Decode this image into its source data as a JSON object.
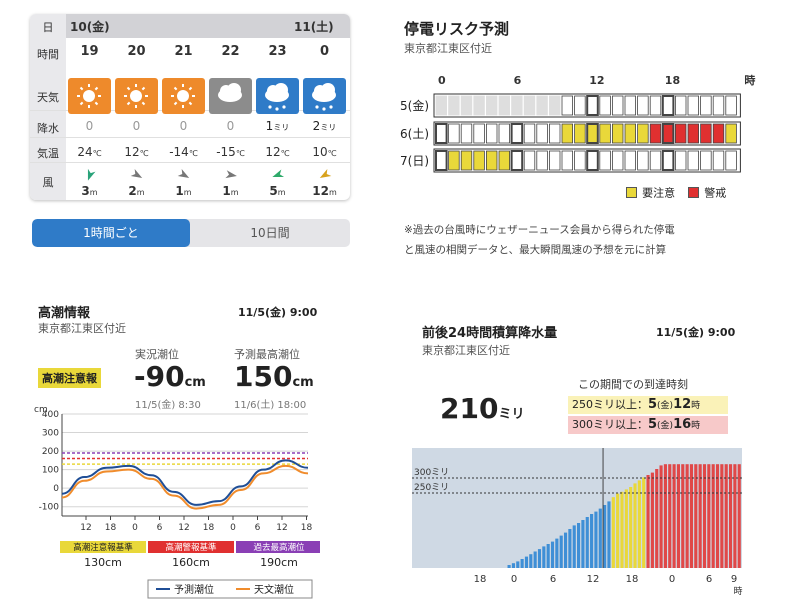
{
  "weather": {
    "row_labels": [
      "日",
      "時間",
      "天気",
      "降水",
      "気温",
      "風"
    ],
    "days": [
      "10(金)",
      "11(土)"
    ],
    "hours": [
      {
        "hour": "19",
        "icon": "sun-icon",
        "precip": "0",
        "temp": "24",
        "wind": "3"
      },
      {
        "hour": "20",
        "icon": "sun-icon",
        "precip": "0",
        "temp": "12",
        "wind": "2"
      },
      {
        "hour": "21",
        "icon": "sun-icon",
        "precip": "0",
        "temp": "-14",
        "wind": "1"
      },
      {
        "hour": "22",
        "icon": "cloud-icon",
        "precip": "0",
        "temp": "-15",
        "wind": "1"
      },
      {
        "hour": "23",
        "icon": "snow-cloud-icon",
        "precip": "1",
        "temp": "12",
        "wind": "5"
      },
      {
        "hour": "0",
        "icon": "snow-cloud-icon",
        "precip": "2",
        "temp": "10",
        "wind": "12"
      }
    ],
    "precip_unit": "ミリ",
    "temp_unit": "℃",
    "wind_unit": "m",
    "colors": {
      "sun": "#ee8a2b",
      "snow": "#2f7bc8",
      "cloud": "#8c8c8c",
      "wind_green": "#2eaa6a",
      "wind_yellow": "#d8a21c"
    }
  },
  "toggle": {
    "tab1": "1時間ごと",
    "tab2": "10日間"
  },
  "outage": {
    "title": "停電リスク予測",
    "location": "東京都江東区付近",
    "hour_ticks": [
      "0",
      "6",
      "12",
      "18",
      "時"
    ],
    "days": [
      "5(金)",
      "6(土)",
      "7(日)"
    ],
    "rows": [
      {
        "day": "5(金)",
        "cells": "nnnnnnnnnn000000000000000"
      },
      {
        "day": "6(土)",
        "cells": "0000000000yyyyyyyrrrrrryy"
      },
      {
        "day": "7(日)",
        "cells": "0yyyyy0000000000000000000"
      }
    ],
    "legend": [
      {
        "label": "要注意",
        "color": "#e9d83a"
      },
      {
        "label": "警戒",
        "color": "#e03030"
      }
    ],
    "note_lines": [
      "※過去の台風時にウェザーニュース会員から得られた停電",
      "と風速の相関データと、最大瞬間風速の予想を元に計算"
    ]
  },
  "tide": {
    "title": "高潮情報",
    "datetime": "11/5(金) 9:00",
    "location": "東京都江東区付近",
    "badge": "高潮注意報",
    "actual_label": "実況潮位",
    "actual_value": "-90",
    "actual_unit": "cm",
    "actual_time": "11/5(金) 8:30",
    "peak_label": "予測最高潮位",
    "peak_value": "150",
    "peak_unit": "cm",
    "peak_time": "11/6(土) 18:00",
    "y_unit": "cm",
    "y_ticks": [
      "400",
      "300",
      "200",
      "100",
      "0",
      "-100"
    ],
    "x_ticks": [
      "12",
      "18",
      "0",
      "6",
      "12",
      "18",
      "0",
      "6",
      "12",
      "18"
    ],
    "thresholds": [
      {
        "label": "高潮注意報基準",
        "value": "130cm",
        "color": "#e9d83a"
      },
      {
        "label": "高潮警報基準",
        "value": "160cm",
        "color": "#e03030"
      },
      {
        "label": "過去最高潮位",
        "value": "190cm",
        "color": "#8a3fb5"
      }
    ],
    "legend": [
      {
        "label": "予測潮位",
        "color": "#1f4e96"
      },
      {
        "label": "天文潮位",
        "color": "#f08c2c"
      }
    ]
  },
  "rain": {
    "title": "前後24時間積算降水量",
    "datetime": "11/5(金) 9:00",
    "location": "東京都江東区付近",
    "total_value": "210",
    "total_unit": "ミリ",
    "arrival_title": "この期間での到達時刻",
    "arrivals": [
      {
        "label": "250ミリ以上：",
        "day": "5",
        "dow": "(金)",
        "hour": "12",
        "unit": "時",
        "color": "#faf2b8"
      },
      {
        "label": "300ミリ以上：",
        "day": "5",
        "dow": "(金)",
        "hour": "16",
        "unit": "時",
        "color": "#f7c9c9"
      }
    ],
    "ref_lines": [
      {
        "label": "300ミリ",
        "value": 300
      },
      {
        "label": "250ミリ",
        "value": 250
      }
    ],
    "x_ticks": [
      "18",
      "0",
      "6",
      "12",
      "18",
      "0",
      "6",
      "9"
    ],
    "x_unit": "時"
  },
  "chart_data": [
    {
      "type": "bar",
      "title": "前後24時間積算降水量",
      "ylabel": "",
      "series": [
        {
          "name": "",
          "values": [
            0,
            0,
            0,
            0,
            0,
            0,
            0,
            0,
            0,
            0,
            0,
            0,
            0,
            0,
            0,
            0,
            0,
            0,
            0,
            0,
            0,
            0,
            10,
            16,
            22,
            30,
            38,
            46,
            55,
            63,
            72,
            80,
            88,
            98,
            108,
            118,
            130,
            142,
            150,
            160,
            170,
            180,
            188,
            198,
            210,
            222,
            236,
            248,
            254,
            262,
            270,
            282,
            292,
            302,
            310,
            318,
            330,
            342,
            346,
            346,
            346,
            346,
            346,
            346,
            346,
            346,
            346,
            346,
            346,
            346,
            346,
            346,
            346,
            346,
            346,
            346
          ]
        }
      ],
      "ref_lines": [
        300,
        250
      ]
    },
    {
      "type": "line",
      "title": "高潮情報",
      "ylabel": "cm",
      "ylim": [
        -150,
        400
      ],
      "series": [
        {
          "name": "予測潮位",
          "values": [
            -30,
            60,
            110,
            120,
            70,
            -20,
            -90,
            -70,
            10,
            100,
            150,
            110
          ]
        },
        {
          "name": "天文潮位",
          "values": [
            -50,
            40,
            90,
            100,
            50,
            -40,
            -110,
            -90,
            -10,
            80,
            120,
            80
          ]
        }
      ]
    }
  ]
}
